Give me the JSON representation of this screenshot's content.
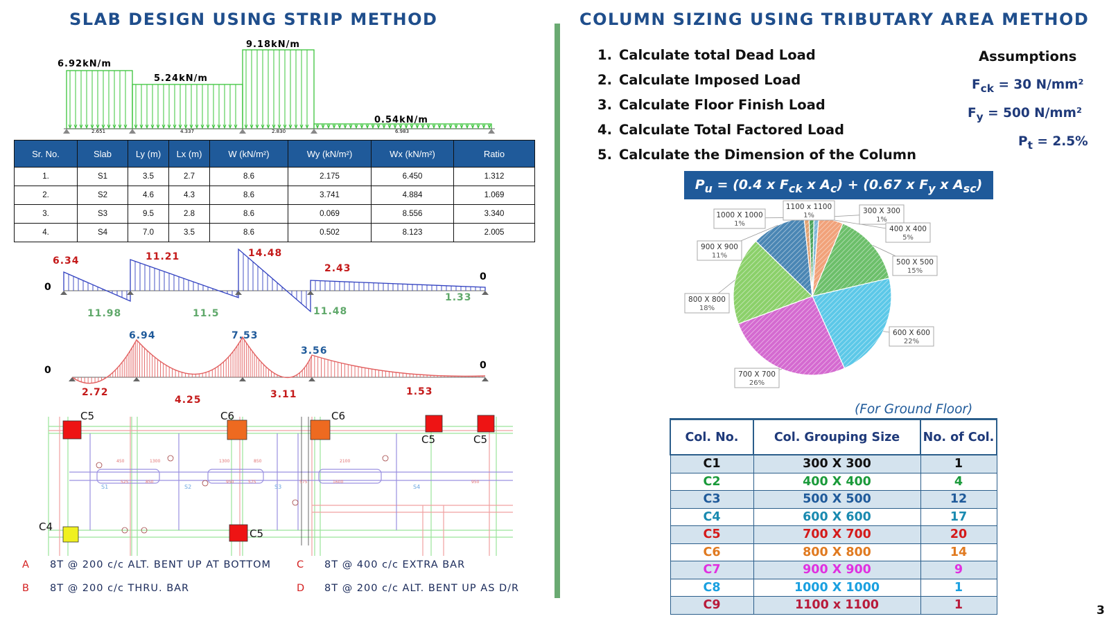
{
  "left_title": "SLAB DESIGN USING STRIP METHOD",
  "right_title": "COLUMN SIZING USING TRIBUTARY AREA METHOD",
  "load_diagram": {
    "loads": [
      "6.92kN/m",
      "5.24kN/m",
      "9.18kN/m",
      "0.54kN/m"
    ],
    "spans": [
      "2.651",
      "4.337",
      "2.830",
      "6.983"
    ]
  },
  "slab_table": {
    "headers": [
      "Sr. No.",
      "Slab",
      "Ly (m)",
      "Lx (m)",
      "W (kN/m²)",
      "Wy (kN/m²)",
      "Wx (kN/m²)",
      "Ratio"
    ],
    "rows": [
      [
        "1.",
        "S1",
        "3.5",
        "2.7",
        "8.6",
        "2.175",
        "6.450",
        "1.312"
      ],
      [
        "2.",
        "S2",
        "4.6",
        "4.3",
        "8.6",
        "3.741",
        "4.884",
        "1.069"
      ],
      [
        "3.",
        "S3",
        "9.5",
        "2.8",
        "8.6",
        "0.069",
        "8.556",
        "3.340"
      ],
      [
        "4.",
        "S4",
        "7.0",
        "3.5",
        "8.6",
        "0.502",
        "8.123",
        "2.005"
      ]
    ]
  },
  "shear_diagram": {
    "end_left": "0",
    "end_right": "0",
    "positive": [
      "6.34",
      "11.21",
      "14.48",
      "2.43"
    ],
    "negative": [
      "11.98",
      "11.5",
      "11.48",
      "1.33"
    ]
  },
  "moment_diagram": {
    "end_left": "0",
    "end_right": "0",
    "support": [
      "6.94",
      "7.53",
      "3.56"
    ],
    "span": [
      "2.72",
      "4.25",
      "3.11",
      "1.53"
    ]
  },
  "plan": {
    "column_labels": [
      "C5",
      "C6",
      "C6",
      "C5",
      "C5",
      "C4",
      "C5"
    ],
    "slab_labels": [
      "S1",
      "S2",
      "S3",
      "S4"
    ],
    "dims": [
      "450",
      "1300",
      "1300",
      "850",
      "2100",
      "525",
      "850",
      "950",
      "575",
      "575",
      "1600",
      "950"
    ]
  },
  "legend": [
    {
      "letter": "A",
      "text": "8T @ 200 c/c ALT. BENT UP AT BOTTOM"
    },
    {
      "letter": "C",
      "text": "8T @ 400 c/c EXTRA BAR"
    },
    {
      "letter": "B",
      "text": "8T @ 200 c/c THRU. BAR"
    },
    {
      "letter": "D",
      "text": "8T @ 200 c/c ALT. BENT UP AS D/R"
    }
  ],
  "steps": [
    {
      "num": "1.",
      "text": "Calculate total Dead Load"
    },
    {
      "num": "2.",
      "text": "Calculate Imposed Load"
    },
    {
      "num": "3.",
      "text": "Calculate Floor Finish Load"
    },
    {
      "num": "4.",
      "text": "Calculate Total Factored Load"
    },
    {
      "num": "5.",
      "text": "Calculate the Dimension of the Column"
    }
  ],
  "assumptions": {
    "title": "Assumptions",
    "fck": "F",
    "fck_sub": "ck",
    "fck_val": " = 30 N/mm²",
    "fy": "F",
    "fy_sub": "y",
    "fy_val": " = 500 N/mm²",
    "pt": "P",
    "pt_sub": "t",
    "pt_val": " = 2.5%"
  },
  "formula": {
    "a": "P",
    "a_sub": "u",
    "b": " = (0.4 x F",
    "b_sub": "ck",
    "c": " x A",
    "c_sub": "c",
    "d": ") + (0.67 x F",
    "d_sub": "y",
    "e": " x A",
    "e_sub": "sc",
    "f": ")"
  },
  "chart_data": {
    "type": "pie",
    "categories": [
      "300 X 300",
      "400 X 400",
      "500 X 500",
      "600 X 600",
      "700 X 700",
      "800 X 800",
      "900 X 900",
      "1000 X 1000",
      "1100 x 1100"
    ],
    "values": [
      1,
      5,
      15,
      22,
      26,
      18,
      11,
      1,
      1
    ],
    "labels": [
      "1%",
      "5%",
      "15%",
      "22%",
      "26%",
      "18%",
      "11%",
      "1%",
      "1%"
    ],
    "colors": [
      "#7fb7d8",
      "#f1a27a",
      "#6cbf6a",
      "#5cc8e8",
      "#d46ad0",
      "#8bd06a",
      "#4a86b4",
      "#e0a070",
      "#4aa35a"
    ]
  },
  "column_table": {
    "caption": "(For Ground Floor)",
    "headers": [
      "Col. No.",
      "Col. Grouping Size",
      "No. of Col."
    ],
    "rows": [
      {
        "no": "C1",
        "size": "300 X 300",
        "count": "1",
        "color": "#111111"
      },
      {
        "no": "C2",
        "size": "400 X 400",
        "count": "4",
        "color": "#1a9a3a"
      },
      {
        "no": "C3",
        "size": "500 X 500",
        "count": "12",
        "color": "#1f5a9a"
      },
      {
        "no": "C4",
        "size": "600 X 600",
        "count": "17",
        "color": "#1a8ab0"
      },
      {
        "no": "C5",
        "size": "700 X 700",
        "count": "20",
        "color": "#d41a1a"
      },
      {
        "no": "C6",
        "size": "800 X 800",
        "count": "14",
        "color": "#e07a20"
      },
      {
        "no": "C7",
        "size": "900 X 900",
        "count": "9",
        "color": "#e030e0"
      },
      {
        "no": "C8",
        "size": "1000 X 1000",
        "count": "1",
        "color": "#1aa0e0"
      },
      {
        "no": "C9",
        "size": "1100 x 1100",
        "count": "1",
        "color": "#b81a3a"
      }
    ]
  },
  "page_number": "3"
}
